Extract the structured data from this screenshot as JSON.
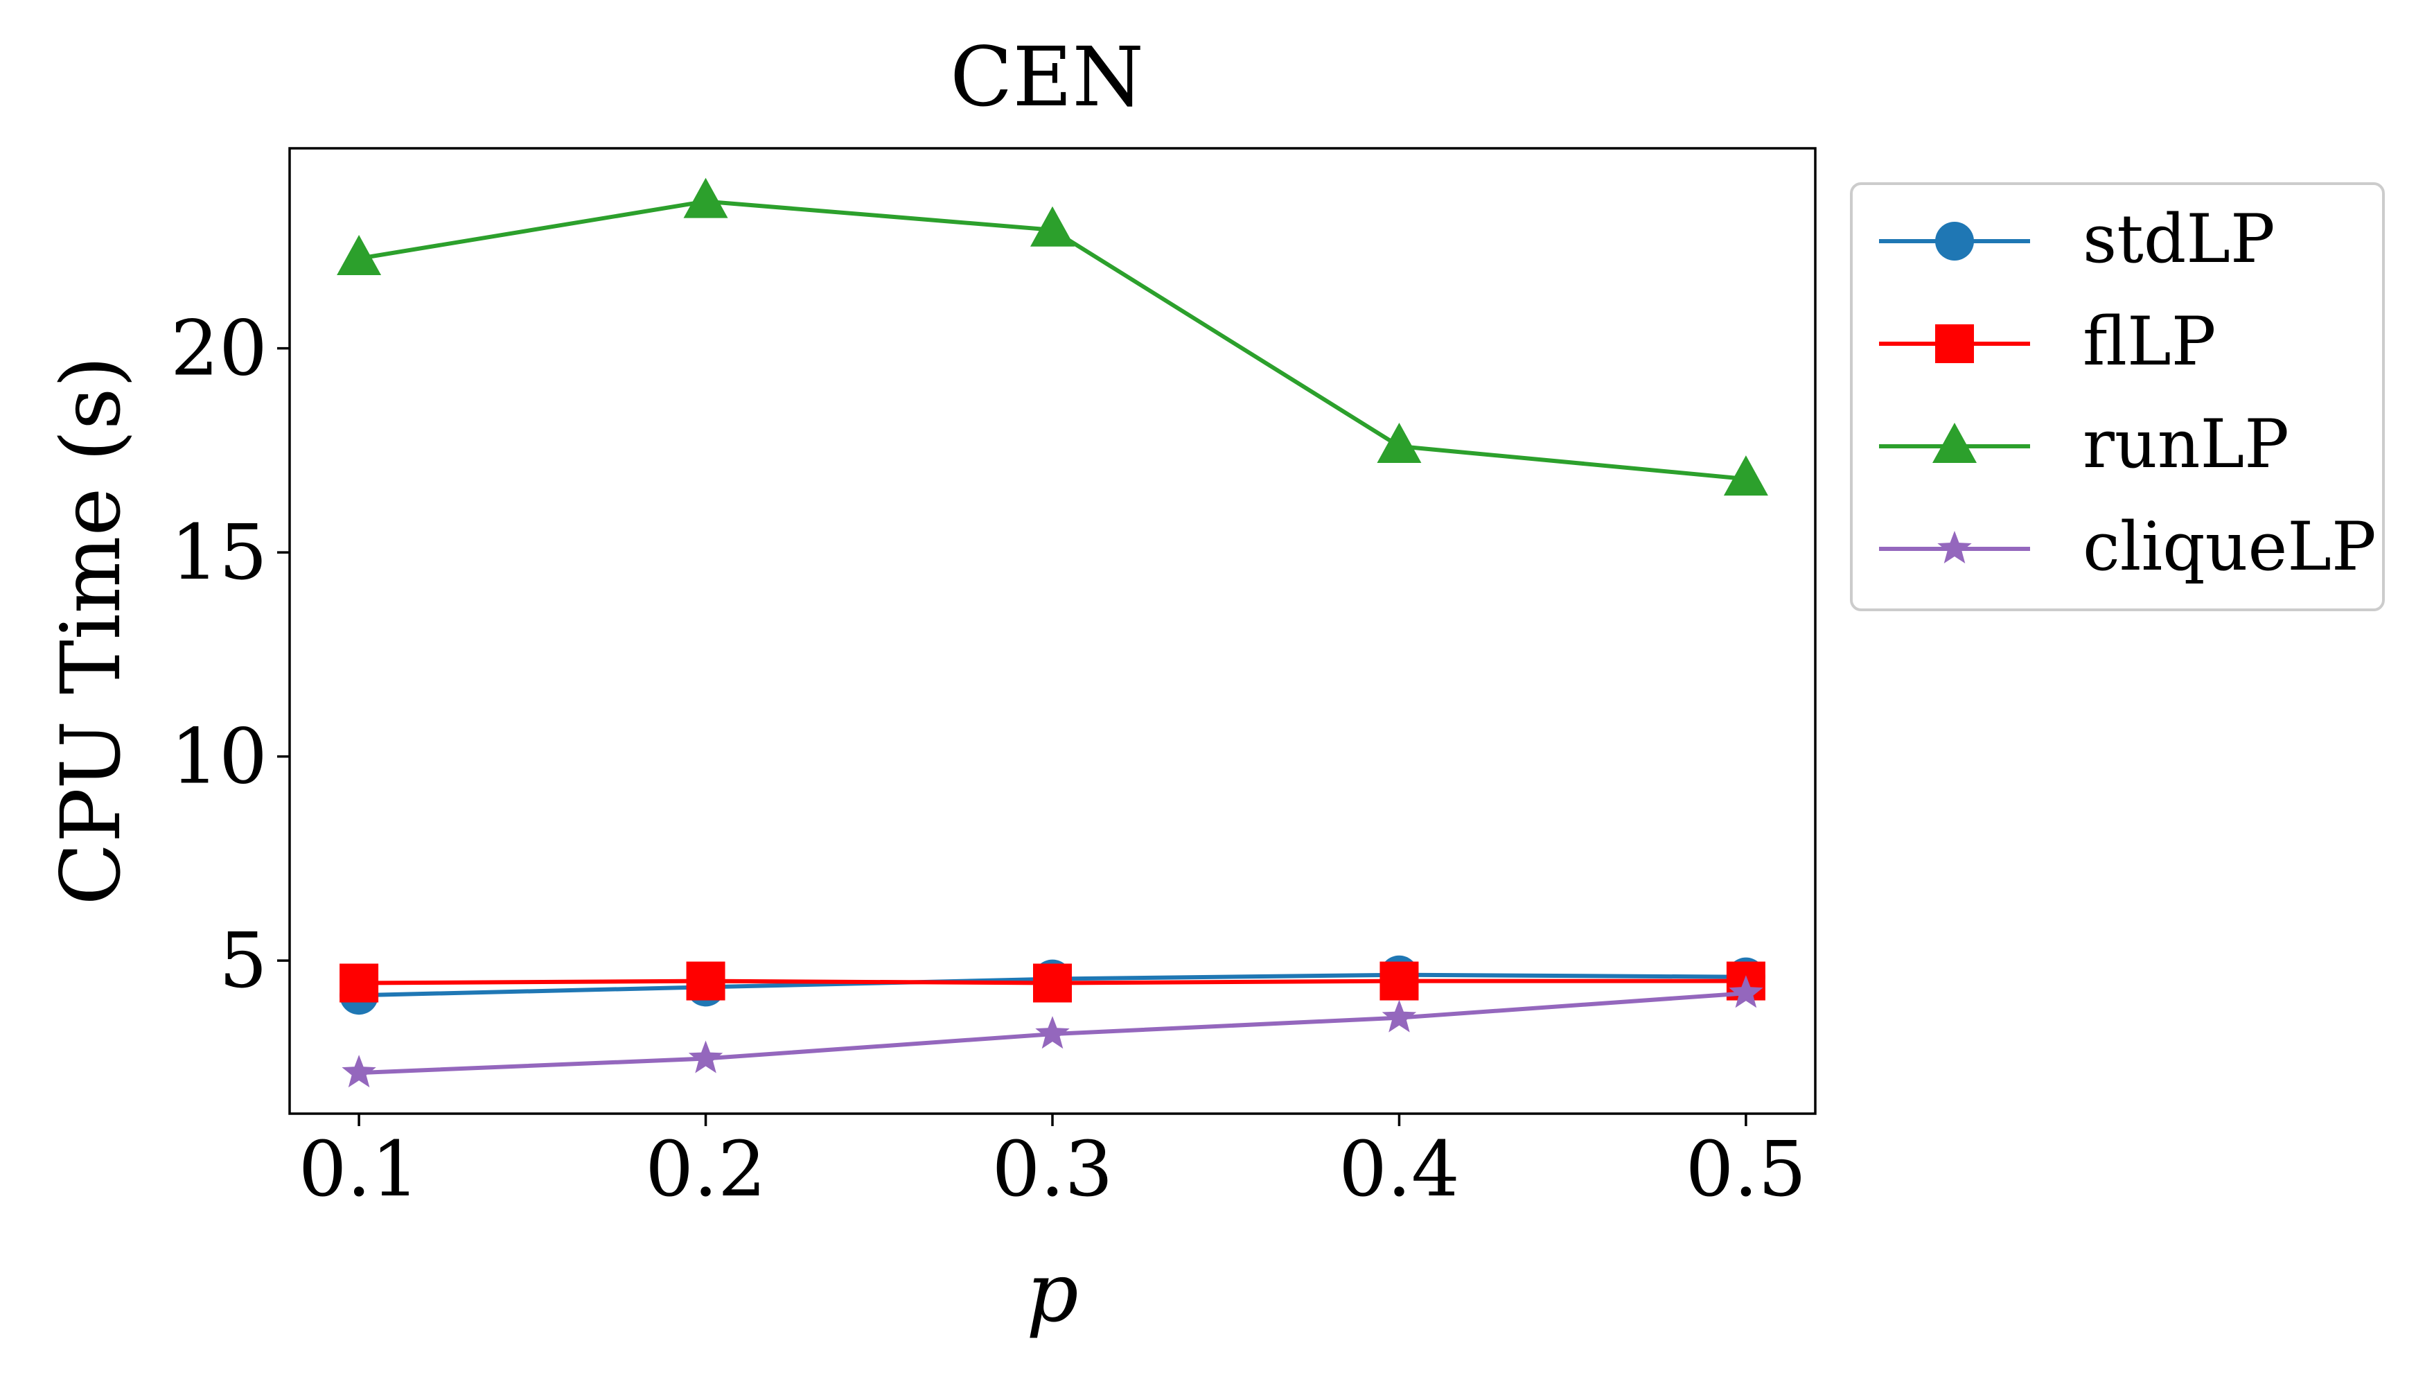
{
  "chart_data": {
    "type": "line",
    "title": "CEN",
    "xlabel": "p",
    "ylabel": "CPU Time (s)",
    "x": [
      0.1,
      0.2,
      0.3,
      0.4,
      0.5
    ],
    "x_tick_labels": [
      "0.1",
      "0.2",
      "0.3",
      "0.4",
      "0.5"
    ],
    "y_ticks": [
      5,
      10,
      15,
      20
    ],
    "y_tick_labels": [
      "5",
      "10",
      "15",
      "20"
    ],
    "xlim": [
      0.08,
      0.52
    ],
    "ylim": [
      1.25,
      24.9
    ],
    "grid": false,
    "legend_placement": "outside-right-top",
    "series": [
      {
        "name": "stdLP",
        "color": "#1f77b4",
        "marker": "circle",
        "values": [
          4.15,
          4.35,
          4.55,
          4.65,
          4.6
        ]
      },
      {
        "name": "flLP",
        "color": "#ff0000",
        "marker": "square",
        "values": [
          4.45,
          4.5,
          4.45,
          4.5,
          4.5
        ]
      },
      {
        "name": "runLP",
        "color": "#2ca02c",
        "marker": "triangle",
        "values": [
          22.2,
          23.6,
          22.9,
          17.6,
          16.8
        ]
      },
      {
        "name": "cliqueLP",
        "color": "#9467bd",
        "marker": "star",
        "values": [
          2.25,
          2.6,
          3.2,
          3.6,
          4.2
        ]
      }
    ]
  }
}
